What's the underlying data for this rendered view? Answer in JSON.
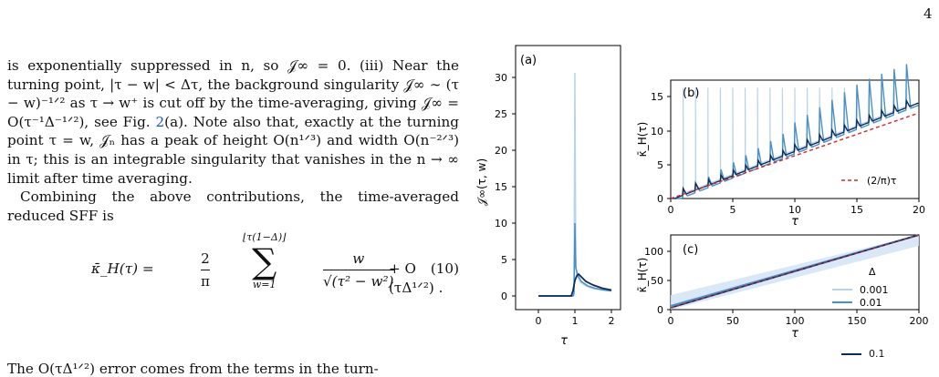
{
  "page": {
    "number": "4"
  },
  "text": {
    "para1": "is exponentially suppressed in n, so 𝒥∞ = 0. (iii) Near the turning point, |τ − w| < Δτ, the background singularity 𝒥∞ ∼ (τ − w)⁻¹ᐟ² as τ → w⁺ is cut off by the time-averaging, giving 𝒥∞ = O(τ⁻¹Δ⁻¹ᐟ²), see Fig. ",
    "para1_ref": "2",
    "para1_end": "(a). Note also that, exactly at the turning point τ = w, 𝒥ₙ has a peak of height O(n¹ᐟ³) and width O(n⁻²ᐟ³) in τ; this is an integrable singularity that vanishes in the n → ∞ limit after time averaging.",
    "para2": "Combining the above contributions, the time-averaged reduced SFF is",
    "eq_lhs": "κ̄_H(τ) =",
    "eq_frac_num": "2",
    "eq_frac_den": "π",
    "eq_sum_upper": "⌊τ(1−Δ)⌋",
    "eq_sum_symbol": "∑",
    "eq_sum_lower": "w=1",
    "eq_term_num": "w",
    "eq_term_den": "√(τ² − w²)",
    "eq_rest": "+ O (τΔ¹ᐟ²) .",
    "eq_number": "(10)",
    "last_line": "The O(τΔ¹ᐟ²) error comes from the terms in the turn-"
  },
  "figure": {
    "panel_a": {
      "label": "(a)",
      "ylabel": "𝒥∞(τ, w)",
      "xlabel": "τ",
      "yticks": [
        "0",
        "5",
        "10",
        "15",
        "20",
        "25",
        "30"
      ],
      "xticks": [
        "0",
        "1",
        "2"
      ]
    },
    "panel_b": {
      "label": "(b)",
      "ylabel": "κ̄_H(τ)",
      "xlabel": "τ",
      "yticks": [
        "0",
        "5",
        "10",
        "15"
      ],
      "xticks": [
        "0",
        "5",
        "10",
        "15",
        "20"
      ],
      "legend": "(2/π)τ"
    },
    "panel_c": {
      "label": "(c)",
      "ylabel": "κ̄_H(τ)",
      "xlabel": "τ",
      "yticks": [
        "0",
        "50",
        "100"
      ],
      "xticks": [
        "0",
        "50",
        "100",
        "150",
        "200"
      ],
      "legend_title": "Δ",
      "legend_entries": [
        "0.001",
        "0.01",
        "0.1"
      ]
    },
    "colors": {
      "delta_0001": "#b9d3ec",
      "delta_001": "#4a90c8",
      "delta_01": "#0d2b5a",
      "reference": "#d62728"
    }
  }
}
